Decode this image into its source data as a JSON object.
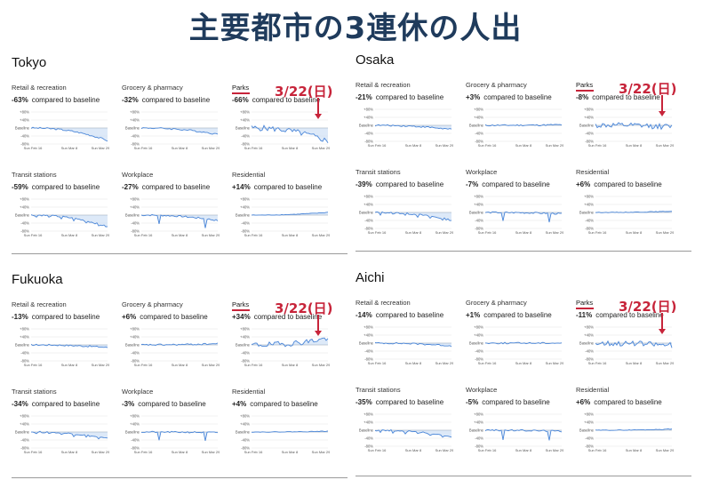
{
  "title": "主要都市の3連休の人出",
  "colors": {
    "title": "#1f3b5c",
    "line": "#4a86d8",
    "band": "#cfe0f5",
    "annotation": "#c7243a"
  },
  "annotation_text": "3/22(日)",
  "compare_text": "compared to baseline",
  "axis": {
    "ticks": [
      "+80%",
      "+40%",
      "Baseline",
      "-40%",
      "-80%"
    ],
    "xticks": [
      "Sun Feb 16",
      "Sun Mar 8",
      "Sun Mar 29"
    ]
  },
  "chart_data": [
    {
      "city": "Tokyo",
      "type": "line",
      "ylim": [
        -80,
        80
      ],
      "panels": [
        {
          "category": "Retail & recreation",
          "change": "-63%"
        },
        {
          "category": "Grocery & pharmacy",
          "change": "-32%"
        },
        {
          "category": "Parks",
          "change": "-66%"
        },
        {
          "category": "Transit stations",
          "change": "-59%"
        },
        {
          "category": "Workplace",
          "change": "-27%"
        },
        {
          "category": "Residential",
          "change": "+14%"
        }
      ]
    },
    {
      "city": "Osaka",
      "type": "line",
      "ylim": [
        -80,
        80
      ],
      "panels": [
        {
          "category": "Retail & recreation",
          "change": "-21%"
        },
        {
          "category": "Grocery & pharmacy",
          "change": "+3%"
        },
        {
          "category": "Parks",
          "change": "-8%"
        },
        {
          "category": "Transit stations",
          "change": "-39%"
        },
        {
          "category": "Workplace",
          "change": "-7%"
        },
        {
          "category": "Residential",
          "change": "+6%"
        }
      ]
    },
    {
      "city": "Fukuoka",
      "type": "line",
      "ylim": [
        -80,
        80
      ],
      "panels": [
        {
          "category": "Retail & recreation",
          "change": "-13%"
        },
        {
          "category": "Grocery & pharmacy",
          "change": "+6%"
        },
        {
          "category": "Parks",
          "change": "+34%"
        },
        {
          "category": "Transit stations",
          "change": "-34%"
        },
        {
          "category": "Workplace",
          "change": "-3%"
        },
        {
          "category": "Residential",
          "change": "+4%"
        }
      ]
    },
    {
      "city": "Aichi",
      "type": "line",
      "ylim": [
        -80,
        80
      ],
      "panels": [
        {
          "category": "Retail & recreation",
          "change": "-14%"
        },
        {
          "category": "Grocery & pharmacy",
          "change": "+1%"
        },
        {
          "category": "Parks",
          "change": "-11%"
        },
        {
          "category": "Transit stations",
          "change": "-35%"
        },
        {
          "category": "Workplace",
          "change": "-5%"
        },
        {
          "category": "Residential",
          "change": "+6%"
        }
      ]
    }
  ]
}
